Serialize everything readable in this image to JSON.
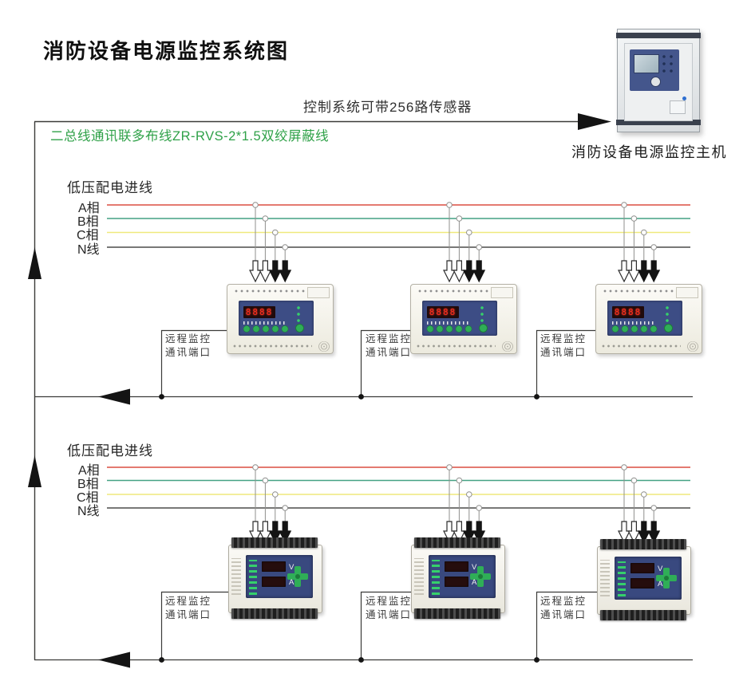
{
  "title": "消防设备电源监控系统图",
  "header": {
    "capacity_note": "控制系统可带256路传感器",
    "bus_wire_note": "二总线通讯联多布线ZR-RVS-2*1.5双绞屏蔽线",
    "host_label": "消防设备电源监控主机"
  },
  "port_label": {
    "line1": "远程监控",
    "line2": "通讯端口"
  },
  "sections": [
    {
      "incoming_label": "低压配电进线",
      "phases": [
        {
          "label": "A相",
          "color": "#dc4f41"
        },
        {
          "label": "B相",
          "color": "#44a184"
        },
        {
          "label": "C相",
          "color": "#efe97c"
        },
        {
          "label": "N线",
          "color": "#4c4c4a"
        }
      ]
    },
    {
      "incoming_label": "低压配电进线",
      "phases": [
        {
          "label": "A相",
          "color": "#dc4f41"
        },
        {
          "label": "B相",
          "color": "#44a184"
        },
        {
          "label": "C相",
          "color": "#efe97c"
        },
        {
          "label": "N线",
          "color": "#4c4c4a"
        }
      ]
    }
  ],
  "device_display": {
    "value": "8888"
  },
  "meter": {
    "volt_label": "V",
    "amp_label": "A"
  },
  "colors": {
    "wire_note_green": "#2fa148",
    "structure_line": "#3b3b39",
    "tap_line_gray": "#8f8f8d",
    "device_panel_blue": "#3d4d85",
    "led_button_green": "#2fae57",
    "display_red": "#ff2d1c"
  }
}
